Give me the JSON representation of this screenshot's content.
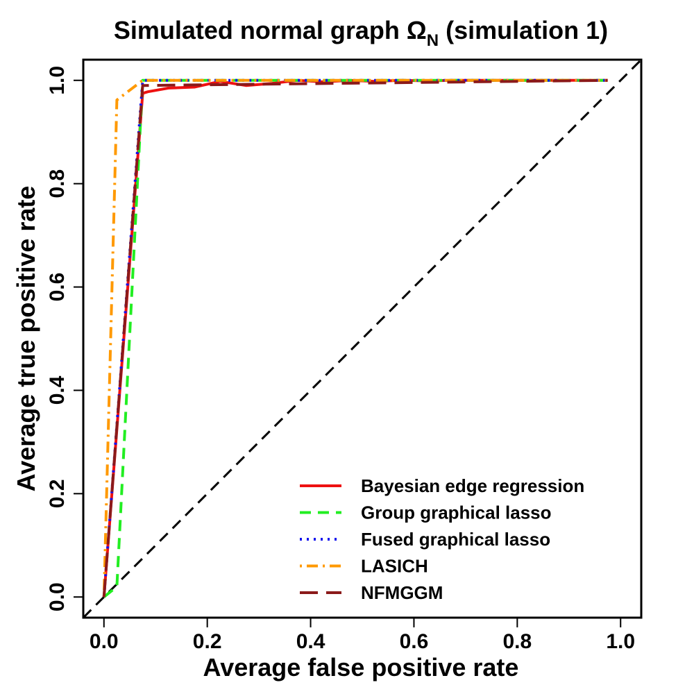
{
  "chart_data": {
    "type": "line",
    "title": "Simulated normal graph Ω",
    "title_subscript": "N",
    "title_suffix": " (simulation 1)",
    "xlabel": "Average false positive rate",
    "ylabel": "Average true positive rate",
    "xlim": [
      -0.04,
      1.04
    ],
    "ylim": [
      -0.04,
      1.04
    ],
    "xticks": [
      0.0,
      0.2,
      0.4,
      0.6,
      0.8,
      1.0
    ],
    "yticks": [
      0.0,
      0.2,
      0.4,
      0.6,
      0.8,
      1.0
    ],
    "xtick_labels": [
      "0.0",
      "0.2",
      "0.4",
      "0.6",
      "0.8",
      "1.0"
    ],
    "ytick_labels": [
      "0.0",
      "0.2",
      "0.4",
      "0.6",
      "0.8",
      "1.0"
    ],
    "legend_position": "bottom-right",
    "reference_line": {
      "x": [
        -0.04,
        1.04
      ],
      "y": [
        -0.04,
        1.04
      ],
      "color": "#000000",
      "style": "dashed"
    },
    "series": [
      {
        "name": "Bayesian edge regression",
        "color": "#ee1111",
        "style": "solid",
        "x": [
          0.0,
          0.075,
          0.085,
          0.125,
          0.175,
          0.225,
          0.275,
          0.325,
          0.375,
          0.425,
          0.475,
          0.525,
          0.575,
          0.625,
          0.675,
          0.725,
          0.775,
          0.825,
          0.875,
          0.925,
          0.975
        ],
        "y": [
          0.0,
          0.975,
          0.978,
          0.985,
          0.987,
          0.998,
          0.99,
          0.994,
          1.0,
          0.997,
          1.0,
          0.998,
          1.0,
          0.999,
          1.0,
          1.0,
          1.0,
          1.0,
          1.0,
          1.0,
          1.0
        ]
      },
      {
        "name": "Group graphical lasso",
        "color": "#22ee22",
        "style": "dashed",
        "x": [
          0.0,
          0.025,
          0.075,
          0.975
        ],
        "y": [
          0.0,
          0.02,
          1.0,
          1.0
        ]
      },
      {
        "name": "Fused graphical lasso",
        "color": "#1111ee",
        "style": "dotted",
        "x": [
          0.0,
          0.075,
          0.975
        ],
        "y": [
          0.0,
          1.0,
          1.0
        ]
      },
      {
        "name": "LASICH",
        "color": "#ff9900",
        "style": "dotdash",
        "x": [
          0.0,
          0.025,
          0.075,
          0.975
        ],
        "y": [
          0.0,
          0.962,
          1.0,
          1.0
        ]
      },
      {
        "name": "NFMGGM",
        "color": "#8b1a1a",
        "style": "longdash",
        "x": [
          0.0,
          0.075,
          0.975
        ],
        "y": [
          0.0,
          0.99,
          1.0
        ]
      }
    ]
  }
}
